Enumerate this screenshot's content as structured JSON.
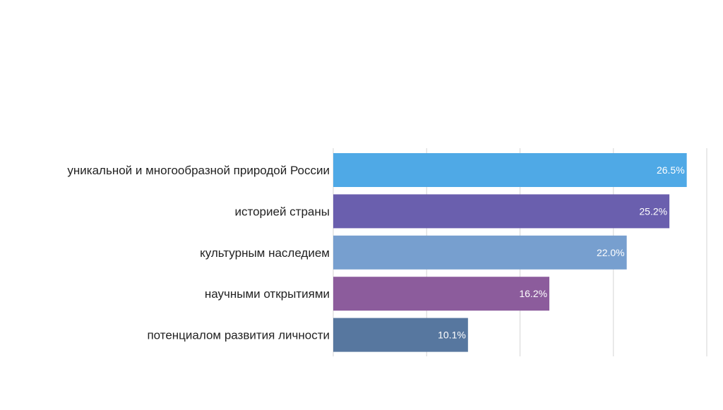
{
  "chart_data": {
    "type": "bar",
    "orientation": "horizontal",
    "categories": [
      "уникальной и многообразной природой России",
      "историей страны",
      "культурным наследием",
      "научными открытиями",
      "потенциалом развития личности"
    ],
    "values": [
      26.5,
      25.2,
      22.0,
      16.2,
      10.1
    ],
    "value_labels": [
      "26.5%",
      "25.2%",
      "22.0%",
      "16.2%",
      "10.1%"
    ],
    "bar_colors": [
      "#4fa9e6",
      "#6a5fae",
      "#779fcf",
      "#8c5c9c",
      "#57779f"
    ],
    "xlim": [
      0,
      28
    ],
    "grid": true,
    "title": "",
    "xlabel": "",
    "ylabel": ""
  }
}
